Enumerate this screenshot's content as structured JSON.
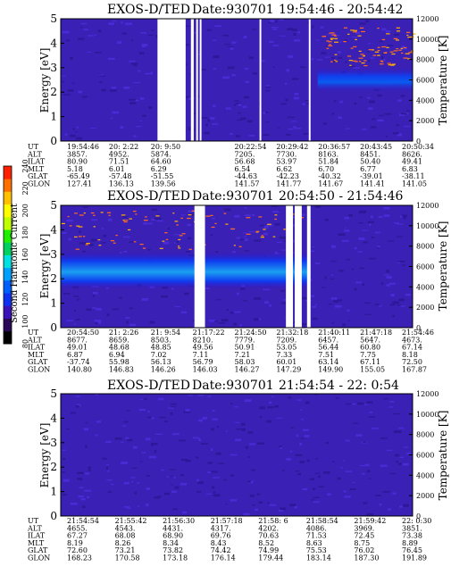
{
  "colorbar": {
    "label": "Second Harmonic Current",
    "ticks": [
      "80",
      "100",
      "120",
      "140",
      "160",
      "180",
      "200",
      "220",
      "240"
    ],
    "colors": [
      "#000000",
      "#2a0a58",
      "#3a12b8",
      "#1030f0",
      "#0060ff",
      "#00a0ff",
      "#00e0e0",
      "#00d060",
      "#20f000",
      "#c0ff00",
      "#ffff00",
      "#ffc000",
      "#ff7000",
      "#ff2000"
    ]
  },
  "panels": [
    {
      "title": "EXOS-D/TED",
      "date": "Date:930701",
      "time_range": "19:54:46 - 20:54:42",
      "ylabel": "Energy [eV]",
      "y2label": "Temperature [K]",
      "yticks": [
        "0",
        "1",
        "2",
        "3",
        "4",
        "5"
      ],
      "y2ticks": [
        "0",
        "2000",
        "4000",
        "6000",
        "8000",
        "10000",
        "12000"
      ],
      "rows": [
        {
          "label": "UT",
          "values": [
            "19:54:46",
            "20: 2:22",
            "20: 9:50",
            "",
            "20:22:54",
            "20:29:42",
            "20:36:57",
            "20:43:45",
            "20:50:34"
          ]
        },
        {
          "label": "ALT",
          "values": [
            "3857.",
            "4952.",
            "5874.",
            "",
            "7205.",
            "7730.",
            "8163.",
            "8451.",
            "8626."
          ]
        },
        {
          "label": "ILAT",
          "values": [
            "80.90",
            "71.51",
            "64.60",
            "",
            "56.68",
            "53.97",
            "51.84",
            "50.40",
            "49.41"
          ]
        },
        {
          "label": "MLT",
          "values": [
            "5.18",
            "6.01",
            "6.29",
            "",
            "6.54",
            "6.62",
            "6.70",
            "6.77",
            "6.83"
          ]
        },
        {
          "label": "GLAT",
          "values": [
            "-65.49",
            "-57.48",
            "-51.55",
            "",
            "-44.63",
            "-42.23",
            "-40.32",
            "-39.01",
            "-38.11"
          ]
        },
        {
          "label": "GLON",
          "values": [
            "127.41",
            "136.13",
            "139.56",
            "",
            "141.57",
            "141.77",
            "141.67",
            "141.41",
            "141.05"
          ]
        }
      ]
    },
    {
      "title": "EXOS-D/TED",
      "date": "Date:930701",
      "time_range": "20:54:50 - 21:54:46",
      "ylabel": "Energy [eV]",
      "y2label": "Temperature [K]",
      "yticks": [
        "0",
        "1",
        "2",
        "3",
        "4",
        "5"
      ],
      "y2ticks": [
        "0",
        "2000",
        "4000",
        "6000",
        "8000",
        "10000",
        "12000"
      ],
      "rows": [
        {
          "label": "UT",
          "values": [
            "20:54:50",
            "21: 2:26",
            "21: 9:54",
            "21:17:22",
            "21:24:50",
            "21:32:18",
            "21:40:11",
            "21:47:18",
            "21:54:46"
          ]
        },
        {
          "label": "ALT",
          "values": [
            "8677.",
            "8659.",
            "8503.",
            "8210.",
            "7779.",
            "7209.",
            "6457.",
            "5647.",
            "4673."
          ]
        },
        {
          "label": "ILAT",
          "values": [
            "49.01",
            "48.68",
            "48.85",
            "49.56",
            "50.91",
            "53.05",
            "56.44",
            "60.80",
            "67.14"
          ]
        },
        {
          "label": "MLT",
          "values": [
            "6.87",
            "6.94",
            "7.02",
            "7.11",
            "7.21",
            "7.33",
            "7.51",
            "7.75",
            "8.18"
          ]
        },
        {
          "label": "GLAT",
          "values": [
            "-37.74",
            "55.98",
            "56.13",
            "56.79",
            "58.03",
            "60.01",
            "63.14",
            "67.11",
            "72.50"
          ]
        },
        {
          "label": "GLON",
          "values": [
            "140.80",
            "146.83",
            "146.26",
            "146.03",
            "146.27",
            "147.29",
            "149.90",
            "155.05",
            "167.87"
          ]
        }
      ]
    },
    {
      "title": "EXOS-D/TED",
      "date": "Date:930701",
      "time_range": "21:54:54 - 22: 0:54",
      "ylabel": "Energy [eV]",
      "y2label": "Temperature [K]",
      "yticks": [
        "0",
        "1",
        "2",
        "3",
        "4",
        "5"
      ],
      "y2ticks": [
        "0",
        "2000",
        "4000",
        "6000",
        "8000",
        "10000",
        "12000"
      ],
      "rows": [
        {
          "label": "UT",
          "values": [
            "21:54:54",
            "21:55:42",
            "21:56:30",
            "21:57:18",
            "21:58: 6",
            "21:58:54",
            "21:59:42",
            "22: 0:30"
          ]
        },
        {
          "label": "ALT",
          "values": [
            "4655.",
            "4543.",
            "4431.",
            "4317.",
            "4202.",
            "4086.",
            "3969.",
            "3851."
          ]
        },
        {
          "label": "ILAT",
          "values": [
            "67.27",
            "68.08",
            "68.90",
            "69.76",
            "70.63",
            "71.53",
            "72.45",
            "73.38"
          ]
        },
        {
          "label": "MLT",
          "values": [
            "8.19",
            "8.26",
            "8.34",
            "8.43",
            "8.52",
            "8.63",
            "8.75",
            "8.89"
          ]
        },
        {
          "label": "GLAT",
          "values": [
            "72.60",
            "73.21",
            "73.82",
            "74.42",
            "74.99",
            "75.53",
            "76.02",
            "76.45"
          ]
        },
        {
          "label": "GLON",
          "values": [
            "168.23",
            "170.58",
            "173.18",
            "176.14",
            "179.44",
            "183.14",
            "187.30",
            "191.89"
          ]
        }
      ]
    }
  ],
  "chart_data": [
    {
      "type": "heatmap",
      "title": "EXOS-D/TED Date:930701 19:54:46 - 20:54:42",
      "ylabel": "Energy [eV]",
      "ylim": [
        0,
        5
      ],
      "y2label": "Temperature [K]",
      "y2lim": [
        0,
        12000
      ],
      "colorbar_label": "Second Harmonic Current",
      "colorbar_range": [
        80,
        240
      ],
      "data_gaps_fraction": [
        [
          0.275,
          0.355
        ],
        [
          0.37,
          0.378
        ],
        [
          0.385,
          0.39
        ],
        [
          0.395,
          0.4
        ],
        [
          0.565,
          0.57
        ],
        [
          0.705,
          0.71
        ]
      ],
      "bright_band": {
        "x_fraction": [
          0.73,
          1.0
        ],
        "energy_ev": [
          2.0,
          3.0
        ]
      }
    },
    {
      "type": "heatmap",
      "title": "EXOS-D/TED Date:930701 20:54:50 - 21:54:46",
      "ylabel": "Energy [eV]",
      "ylim": [
        0,
        5
      ],
      "y2label": "Temperature [K]",
      "y2lim": [
        0,
        12000
      ],
      "colorbar_label": "Second Harmonic Current",
      "colorbar_range": [
        80,
        240
      ],
      "data_gaps_fraction": [
        [
          0.38,
          0.41
        ],
        [
          0.64,
          0.66
        ],
        [
          0.665,
          0.685
        ],
        [
          0.7,
          0.71
        ]
      ],
      "bright_band": {
        "x_fraction": [
          0.0,
          0.71
        ],
        "energy_ev": [
          1.6,
          3.1
        ]
      }
    },
    {
      "type": "heatmap",
      "title": "EXOS-D/TED Date:930701 21:54:54 - 22: 0:54",
      "ylabel": "Energy [eV]",
      "ylim": [
        0,
        5
      ],
      "y2label": "Temperature [K]",
      "y2lim": [
        0,
        12000
      ],
      "colorbar_label": "Second Harmonic Current",
      "colorbar_range": [
        80,
        240
      ],
      "data_gaps_fraction": [],
      "bright_band": null
    }
  ]
}
